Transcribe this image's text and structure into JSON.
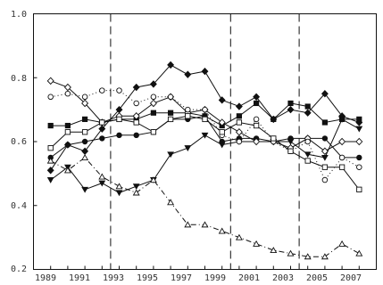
{
  "chart_data": {
    "type": "line",
    "title": "",
    "xlabel": "",
    "ylabel": "",
    "xlim": [
      1988,
      2008
    ],
    "ylim": [
      0.2,
      1.0
    ],
    "x_ticks": [
      1989,
      1991,
      1993,
      1995,
      1997,
      1999,
      2001,
      2003,
      2005,
      2007
    ],
    "y_ticks": [
      0.2,
      0.4,
      0.6,
      0.8,
      1.0
    ],
    "y_tick_labels": [
      "0.2",
      "0.4",
      "0.6",
      "0.8",
      "1.0"
    ],
    "vertical_dividers": [
      1992.5,
      1999.5,
      2003.5
    ],
    "grid": false,
    "legend": "none",
    "color": "#111111",
    "series": [
      {
        "marker": "filled-diamond",
        "line": "solid",
        "x": [
          1989,
          1990,
          1991,
          1992,
          1993,
          1994,
          1995,
          1996,
          1997,
          1998,
          1999,
          2000,
          2001,
          2002,
          2003,
          2004,
          2005,
          2006,
          2007
        ],
        "y": [
          0.51,
          0.59,
          0.57,
          0.64,
          0.7,
          0.77,
          0.78,
          0.84,
          0.81,
          0.82,
          0.73,
          0.71,
          0.74,
          0.67,
          0.7,
          0.69,
          0.75,
          0.68,
          0.66
        ]
      },
      {
        "marker": "filled-square",
        "line": "solid",
        "x": [
          1989,
          1990,
          1991,
          1992,
          1993,
          1994,
          1995,
          1996,
          1997,
          1998,
          1999,
          2000,
          2001,
          2002,
          2003,
          2004,
          2005,
          2006,
          2007
        ],
        "y": [
          0.65,
          0.65,
          0.67,
          0.66,
          0.67,
          0.67,
          0.69,
          0.69,
          0.69,
          0.68,
          0.65,
          0.68,
          0.72,
          0.67,
          0.72,
          0.71,
          0.66,
          0.67,
          0.67
        ]
      },
      {
        "marker": "filled-circle",
        "line": "solid",
        "x": [
          1989,
          1990,
          1991,
          1992,
          1993,
          1994,
          1995,
          1996,
          1997,
          1998,
          1999,
          2000,
          2001,
          2002,
          2003,
          2004,
          2005,
          2006,
          2007
        ],
        "y": [
          0.55,
          0.59,
          0.6,
          0.61,
          0.62,
          0.62,
          0.63,
          0.67,
          0.67,
          0.68,
          0.6,
          0.61,
          0.61,
          0.6,
          0.61,
          0.61,
          0.61,
          0.55,
          0.55
        ]
      },
      {
        "marker": "filled-triangle-down",
        "line": "solid",
        "x": [
          1989,
          1990,
          1991,
          1992,
          1993,
          1994,
          1995,
          1996,
          1997,
          1998,
          1999,
          2000,
          2001,
          2002,
          2003,
          2004,
          2005,
          2006,
          2007
        ],
        "y": [
          0.48,
          0.52,
          0.45,
          0.47,
          0.44,
          0.46,
          0.48,
          0.56,
          0.58,
          0.62,
          0.59,
          0.6,
          0.6,
          0.6,
          0.6,
          0.56,
          0.55,
          0.67,
          0.64
        ]
      },
      {
        "marker": "open-diamond",
        "line": "solid",
        "x": [
          1989,
          1990,
          1991,
          1992,
          1993,
          1994,
          1995,
          1996,
          1997,
          1998,
          1999,
          2000,
          2001,
          2002,
          2003,
          2004,
          2005,
          2006,
          2007
        ],
        "y": [
          0.79,
          0.77,
          0.72,
          0.66,
          0.68,
          0.68,
          0.72,
          0.74,
          0.69,
          0.7,
          0.66,
          0.63,
          0.6,
          0.6,
          0.58,
          0.61,
          0.57,
          0.6,
          0.6
        ]
      },
      {
        "marker": "open-circle",
        "line": "dotted",
        "x": [
          1989,
          1990,
          1991,
          1992,
          1993,
          1994,
          1995,
          1996,
          1997,
          1998,
          1999,
          2000,
          2001,
          2002,
          2003,
          2004,
          2005,
          2006,
          2007
        ],
        "y": [
          0.74,
          0.75,
          0.74,
          0.76,
          0.76,
          0.72,
          0.74,
          0.74,
          0.7,
          0.7,
          0.62,
          0.6,
          0.67,
          0.6,
          0.57,
          0.6,
          0.48,
          0.55,
          0.52
        ]
      },
      {
        "marker": "open-square",
        "line": "solid",
        "x": [
          1989,
          1990,
          1991,
          1992,
          1993,
          1994,
          1995,
          1996,
          1997,
          1998,
          1999,
          2000,
          2001,
          2002,
          2003,
          2004,
          2005,
          2006,
          2007
        ],
        "y": [
          0.58,
          0.63,
          0.63,
          0.66,
          0.67,
          0.66,
          0.63,
          0.67,
          0.68,
          0.67,
          0.63,
          0.66,
          0.65,
          0.61,
          0.57,
          0.54,
          0.52,
          0.52,
          0.45
        ]
      },
      {
        "marker": "open-triangle-up",
        "line": "dashdot",
        "x": [
          1989,
          1990,
          1991,
          1992,
          1993,
          1994,
          1995,
          1996,
          1997,
          1998,
          1999,
          2000,
          2001,
          2002,
          2003,
          2004,
          2005,
          2006,
          2007
        ],
        "y": [
          0.54,
          0.51,
          0.55,
          0.49,
          0.46,
          0.44,
          0.48,
          0.41,
          0.34,
          0.34,
          0.32,
          0.3,
          0.28,
          0.26,
          0.25,
          0.24,
          0.24,
          0.28,
          0.25
        ]
      }
    ]
  }
}
